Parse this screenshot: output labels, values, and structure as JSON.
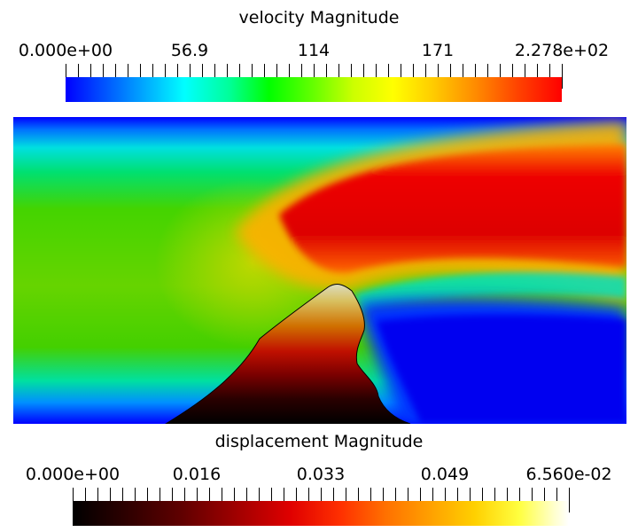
{
  "velocity_legend": {
    "title": "velocity Magnitude",
    "ticks": [
      "0.000e+00",
      "56.9",
      "114",
      "171",
      "2.278e+02"
    ]
  },
  "displacement_legend": {
    "title": "displacement Magnitude",
    "ticks": [
      "0.000e+00",
      "0.016",
      "0.033",
      "0.049",
      "6.560e-02"
    ]
  }
}
